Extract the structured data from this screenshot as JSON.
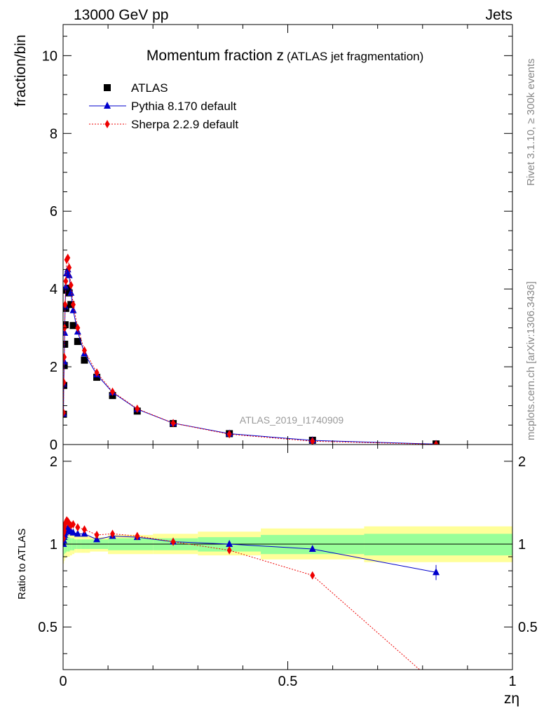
{
  "header": {
    "left": "13000 GeV pp",
    "right": "Jets"
  },
  "side_text": {
    "rivet": "Rivet 3.1.10, ≥ 300k events",
    "mcplots": "mcplots.cern.ch [arXiv:1306.3436]"
  },
  "chart_data": [
    {
      "type": "scatter",
      "title": "Momentum fraction z",
      "subtitle": "(ATLAS jet fragmentation)",
      "ylabel": "fraction/bin",
      "xlabel": "zη",
      "watermark": "ATLAS_2019_I1740909",
      "xlim": [
        0,
        1
      ],
      "ylim": [
        0,
        10.8
      ],
      "y_ticks": [
        "0",
        "2",
        "4",
        "6",
        "8",
        "10"
      ],
      "grid": false,
      "legend_position": "top-left",
      "series": [
        {
          "name": "ATLAS",
          "marker": "square",
          "color": "#000000",
          "x": [
            0.0008,
            0.0015,
            0.0025,
            0.0035,
            0.0045,
            0.006,
            0.008,
            0.0105,
            0.0135,
            0.0175,
            0.0225,
            0.0325,
            0.0475,
            0.075,
            0.11,
            0.165,
            0.245,
            0.37,
            0.555,
            0.83
          ],
          "y": [
            0.78,
            1.52,
            2.03,
            2.58,
            3.08,
            3.5,
            3.97,
            4.02,
            3.9,
            3.6,
            3.06,
            2.65,
            2.17,
            1.73,
            1.26,
            0.86,
            0.54,
            0.28,
            0.11,
            0.015
          ]
        },
        {
          "name": "Pythia 8.170 default",
          "marker": "triangle",
          "color": "#0000cc",
          "x": [
            0.0008,
            0.0015,
            0.0025,
            0.0035,
            0.0045,
            0.006,
            0.008,
            0.0105,
            0.0135,
            0.0175,
            0.0225,
            0.0325,
            0.0475,
            0.075,
            0.11,
            0.165,
            0.245,
            0.37,
            0.555,
            0.83
          ],
          "y": [
            0.79,
            1.55,
            2.13,
            2.87,
            3.55,
            4.05,
            4.4,
            4.5,
            4.35,
            3.9,
            3.45,
            2.9,
            2.34,
            1.8,
            1.34,
            0.91,
            0.55,
            0.28,
            0.106,
            0.012
          ]
        },
        {
          "name": "Sherpa 2.2.9 default",
          "marker": "diamond",
          "color": "#ee0000",
          "x": [
            0.0008,
            0.0015,
            0.0025,
            0.0035,
            0.0045,
            0.006,
            0.008,
            0.0105,
            0.0135,
            0.0175,
            0.0225,
            0.0325,
            0.0475,
            0.075,
            0.11,
            0.165,
            0.245,
            0.37,
            0.555,
            0.83
          ],
          "y": [
            0.82,
            1.6,
            2.25,
            3.0,
            3.6,
            4.2,
            4.75,
            4.8,
            4.55,
            4.1,
            3.6,
            3.0,
            2.42,
            1.85,
            1.36,
            0.92,
            0.55,
            0.265,
            0.085,
            0.005
          ]
        }
      ]
    },
    {
      "type": "scatter",
      "ylabel": "Ratio to ATLAS",
      "xlim": [
        0,
        1
      ],
      "ylim": [
        0.35,
        2.3
      ],
      "y_ticks": [
        "0.5",
        "1",
        "2"
      ],
      "x_ticks": [
        "0",
        "0.5",
        "1"
      ],
      "reference_line": 1,
      "bands": {
        "x_edges": [
          0,
          0.002,
          0.004,
          0.007,
          0.01,
          0.015,
          0.02,
          0.025,
          0.03,
          0.04,
          0.05,
          0.06,
          0.1,
          0.2,
          0.3,
          0.44,
          0.67,
          1.0
        ],
        "green_low": [
          0.9,
          0.92,
          0.93,
          0.94,
          0.94,
          0.95,
          0.95,
          0.96,
          0.96,
          0.96,
          0.96,
          0.96,
          0.95,
          0.95,
          0.94,
          0.92,
          0.91
        ],
        "green_high": [
          1.1,
          1.08,
          1.07,
          1.06,
          1.06,
          1.05,
          1.05,
          1.04,
          1.04,
          1.04,
          1.04,
          1.04,
          1.05,
          1.05,
          1.06,
          1.08,
          1.09
        ],
        "yellow_low": [
          0.85,
          0.87,
          0.89,
          0.9,
          0.9,
          0.91,
          0.92,
          0.93,
          0.93,
          0.93,
          0.93,
          0.94,
          0.92,
          0.92,
          0.91,
          0.88,
          0.86
        ],
        "yellow_high": [
          1.15,
          1.13,
          1.11,
          1.1,
          1.1,
          1.09,
          1.08,
          1.07,
          1.07,
          1.07,
          1.07,
          1.06,
          1.08,
          1.09,
          1.11,
          1.14,
          1.16
        ]
      },
      "series": [
        {
          "name": "Pythia 8.170 default",
          "marker": "triangle",
          "color": "#0000cc",
          "x": [
            0.0008,
            0.0015,
            0.0025,
            0.0035,
            0.0045,
            0.006,
            0.008,
            0.0105,
            0.0135,
            0.0175,
            0.0225,
            0.0325,
            0.0475,
            0.075,
            0.11,
            0.165,
            0.245,
            0.37,
            0.555,
            0.83
          ],
          "y": [
            1.0,
            1.03,
            1.06,
            1.08,
            1.1,
            1.12,
            1.13,
            1.14,
            1.12,
            1.11,
            1.1,
            1.09,
            1.09,
            1.04,
            1.07,
            1.06,
            1.02,
            1.0,
            0.96,
            0.79
          ],
          "err": [
            0,
            0,
            0,
            0,
            0,
            0,
            0,
            0,
            0,
            0,
            0,
            0,
            0,
            0,
            0,
            0,
            0,
            0,
            0.015,
            0.05
          ]
        },
        {
          "name": "Sherpa 2.2.9 default",
          "marker": "diamond",
          "color": "#ee0000",
          "x": [
            0.0008,
            0.0015,
            0.0025,
            0.0035,
            0.0045,
            0.006,
            0.008,
            0.0105,
            0.0135,
            0.0175,
            0.0225,
            0.0325,
            0.0475,
            0.075,
            0.11,
            0.165,
            0.245,
            0.37,
            0.555,
            0.83
          ],
          "y": [
            1.05,
            1.1,
            1.12,
            1.16,
            1.18,
            1.2,
            1.22,
            1.21,
            1.19,
            1.17,
            1.18,
            1.15,
            1.13,
            1.08,
            1.09,
            1.07,
            1.02,
            0.95,
            0.77,
            0.31
          ]
        }
      ]
    }
  ]
}
